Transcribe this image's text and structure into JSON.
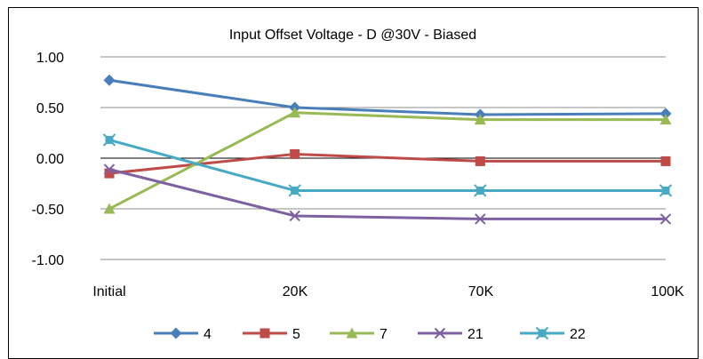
{
  "chart_data": {
    "type": "line",
    "title": "Input Offset Voltage - D @30V - Biased",
    "categories": [
      "Initial",
      "20K",
      "70K",
      "100K"
    ],
    "ylim": [
      -1.0,
      1.0
    ],
    "yticks": [
      "1.00",
      "0.50",
      "0.00",
      "-0.50",
      "-1.00"
    ],
    "ytick_values": [
      1.0,
      0.5,
      0.0,
      -0.5,
      -1.0
    ],
    "grid": true,
    "legend_position": "bottom",
    "series": [
      {
        "name": "4",
        "values": [
          0.77,
          0.5,
          0.43,
          0.44
        ],
        "color": "#4a7ebb",
        "marker": "diamond"
      },
      {
        "name": "5",
        "values": [
          -0.15,
          0.04,
          -0.03,
          -0.03
        ],
        "color": "#be4b48",
        "marker": "square"
      },
      {
        "name": "7",
        "values": [
          -0.5,
          0.45,
          0.38,
          0.38
        ],
        "color": "#98b954",
        "marker": "triangle"
      },
      {
        "name": "21",
        "values": [
          -0.11,
          -0.57,
          -0.6,
          -0.6
        ],
        "color": "#7d60a0",
        "marker": "x"
      },
      {
        "name": "22",
        "values": [
          0.18,
          -0.32,
          -0.32,
          -0.32
        ],
        "color": "#46aac5",
        "marker": "asterisk"
      }
    ]
  }
}
